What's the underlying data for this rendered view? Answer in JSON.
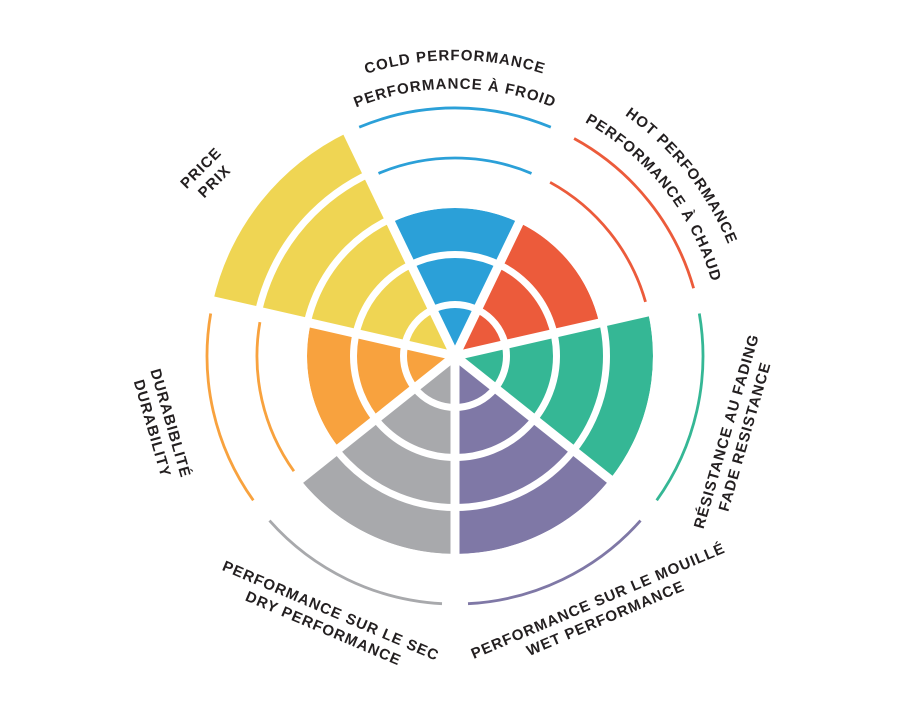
{
  "background_color": "#FFFFFF",
  "text_color": "#231F20",
  "chart_data": {
    "type": "polar-bar",
    "subtype": "coxcomb-rating-wheel",
    "title": "",
    "max_value": 5,
    "ring_count": 5,
    "grid": "concentric-ring-dividers",
    "legend_position": "labels-around-perimeter",
    "segments": [
      {
        "id": "cold",
        "lines": [
          "COLD PERFORMANCE",
          "PERFORMANCE À FROID"
        ],
        "value": 3,
        "color": "#2BA0D8",
        "label_style": "curved"
      },
      {
        "id": "hot",
        "lines": [
          "HOT PERFORMANCE",
          "PERFORMANCE À CHAUD"
        ],
        "value": 3,
        "color": "#EC5B3B",
        "label_style": "curved"
      },
      {
        "id": "fade",
        "lines": [
          "RÉSISTANCE AU FADING",
          "FADE RESISTANCE"
        ],
        "value": 4,
        "color": "#35B795",
        "label_style": "rotated"
      },
      {
        "id": "wet",
        "lines": [
          "PERFORMANCE SUR LE MOUILLÉ",
          "WET PERFORMANCE"
        ],
        "value": 4,
        "color": "#7F78A6",
        "label_style": "rotated"
      },
      {
        "id": "dry",
        "lines": [
          "PERFORMANCE SUR LE SEC",
          "DRY PERFORMANCE"
        ],
        "value": 4,
        "color": "#A8A9AC",
        "label_style": "rotated"
      },
      {
        "id": "durability",
        "lines": [
          "DURABIBLITÉ",
          "DURABILITY"
        ],
        "value": 3,
        "color": "#F8A23E",
        "label_style": "rotated"
      },
      {
        "id": "price",
        "lines": [
          "PRICE",
          "PRIX"
        ],
        "value": 5,
        "color": "#EFD553",
        "label_style": "rotated"
      }
    ]
  }
}
